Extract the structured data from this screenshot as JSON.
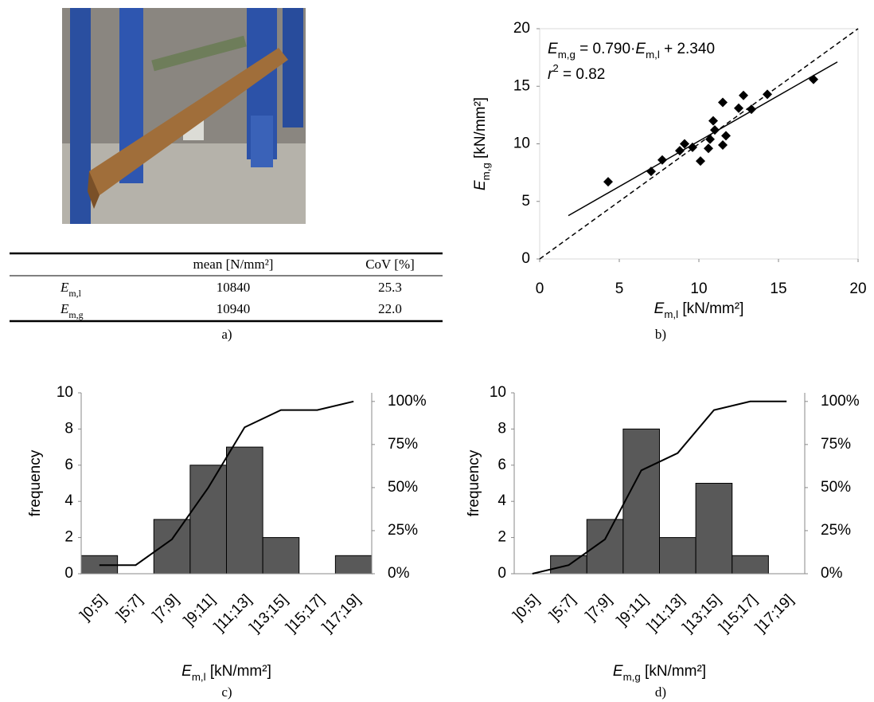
{
  "figure": {
    "panels": [
      "a)",
      "b)",
      "c)",
      "d)"
    ],
    "table": {
      "header": [
        "mean [N/mm²]",
        "CoV [%]"
      ],
      "rows": [
        {
          "symbol": "E",
          "subscript": "m,l",
          "cells": [
            "10840",
            "25.3"
          ]
        },
        {
          "symbol": "E",
          "subscript": "m,g",
          "cells": [
            "10940",
            "22.0"
          ]
        }
      ]
    }
  },
  "chart_data": [
    {
      "type": "scatter",
      "x": [
        4.3,
        7.0,
        7.7,
        8.8,
        9.1,
        9.6,
        10.1,
        10.6,
        10.7,
        10.9,
        11.0,
        11.5,
        11.5,
        11.7,
        12.5,
        12.8,
        13.3,
        14.3,
        17.2
      ],
      "values": [
        6.7,
        7.6,
        8.6,
        9.4,
        10.0,
        9.7,
        8.5,
        9.6,
        10.4,
        12.0,
        11.2,
        13.6,
        9.9,
        10.7,
        13.1,
        14.2,
        13.0,
        14.3,
        15.6
      ],
      "color": "#000000",
      "marker": "diamond",
      "xlim": [
        0,
        20
      ],
      "ylim": [
        0,
        20
      ],
      "xticks": [
        0,
        5,
        10,
        15,
        20
      ],
      "yticks": [
        0,
        5,
        10,
        15,
        20
      ],
      "xlabel": [
        {
          "text": "E",
          "style": "italic"
        },
        {
          "text": "m,l",
          "style": "sub"
        },
        {
          "text": " [kN/mm²]"
        }
      ],
      "ylabel": [
        {
          "text": "E",
          "style": "italic"
        },
        {
          "text": "m,g",
          "style": "sub"
        },
        {
          "text": " [kN/mm²]"
        }
      ],
      "annotations": [
        [
          {
            "text": "E",
            "style": "italic"
          },
          {
            "text": "m,g",
            "style": "sub"
          },
          {
            "text": " = 0.790·"
          },
          {
            "text": "E",
            "style": "italic"
          },
          {
            "text": "m,l",
            "style": "sub"
          },
          {
            "text": " + 2.340"
          }
        ],
        [
          {
            "text": "r",
            "style": "italic"
          },
          {
            "text": "2",
            "style": "sup"
          },
          {
            "text": " = 0.82"
          }
        ]
      ],
      "fit": {
        "slope": 0.79,
        "intercept": 2.34,
        "x": [
          1.8,
          18.7
        ]
      },
      "reference_line": "dashed"
    },
    {
      "type": "histogram",
      "categories": [
        "]0;5]",
        "]5;7]",
        "]7;9]",
        "]9;11]",
        "]11;13]",
        "]13;15]",
        "]15;17]",
        "]17;19]"
      ],
      "values": [
        1,
        0,
        3,
        6,
        7,
        2,
        0,
        1
      ],
      "color": "#595959",
      "ylim": [
        0,
        10
      ],
      "yticks": [
        0,
        2,
        4,
        6,
        8,
        10
      ],
      "ylabel": "frequency",
      "xlabel": [
        {
          "text": "E",
          "style": "italic"
        },
        {
          "text": "m,l",
          "style": "sub"
        },
        {
          "text": " [kN/mm²]"
        }
      ],
      "series": [
        {
          "color": "#000000",
          "axis": "y2",
          "values": [
            5,
            5,
            20,
            50,
            85,
            95,
            95,
            100
          ]
        }
      ],
      "y2lim": [
        0,
        105
      ],
      "y2ticks": [
        {
          "value": 0,
          "label": "0%"
        },
        {
          "value": 25,
          "label": "25%"
        },
        {
          "value": 50,
          "label": "50%"
        },
        {
          "value": 75,
          "label": "75%"
        },
        {
          "value": 100,
          "label": "100%"
        }
      ]
    },
    {
      "type": "histogram",
      "categories": [
        "]0;5]",
        "]5;7]",
        "]7;9]",
        "]9;11]",
        "]11;13]",
        "]13;15]",
        "]15;17]",
        "]17;19]"
      ],
      "values": [
        0,
        1,
        3,
        8,
        2,
        5,
        1,
        0
      ],
      "color": "#595959",
      "ylim": [
        0,
        10
      ],
      "yticks": [
        0,
        2,
        4,
        6,
        8,
        10
      ],
      "ylabel": "frequency",
      "xlabel": [
        {
          "text": "E",
          "style": "italic"
        },
        {
          "text": "m,g",
          "style": "sub"
        },
        {
          "text": " [kN/mm²]"
        }
      ],
      "series": [
        {
          "color": "#000000",
          "axis": "y2",
          "values": [
            0,
            5,
            20,
            60,
            70,
            95,
            100,
            100
          ]
        }
      ],
      "y2lim": [
        0,
        105
      ],
      "y2ticks": [
        {
          "value": 0,
          "label": "0%"
        },
        {
          "value": 25,
          "label": "25%"
        },
        {
          "value": 50,
          "label": "50%"
        },
        {
          "value": 75,
          "label": "75%"
        },
        {
          "value": 100,
          "label": "100%"
        }
      ]
    }
  ]
}
